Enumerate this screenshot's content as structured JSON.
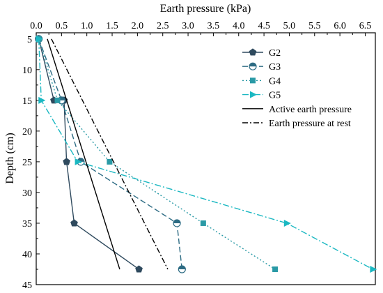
{
  "chart_data": {
    "type": "line",
    "title": "",
    "xlabel": "Earth pressure (kPa)",
    "ylabel": "Depth (cm)",
    "x_axis_position": "top",
    "y_axis_inverted": true,
    "xlim": [
      0,
      6.7
    ],
    "ylim": [
      4,
      45
    ],
    "xticks": [
      "0.0",
      "0.5",
      "1.0",
      "1.5",
      "2.0",
      "2.5",
      "3.0",
      "3.5",
      "4.0",
      "4.5",
      "5.0",
      "5.5",
      "6.0",
      "6.5"
    ],
    "yticks": [
      "5",
      "10",
      "15",
      "20",
      "25",
      "30",
      "35",
      "40",
      "45"
    ],
    "legend_position": "top-right",
    "grid": false,
    "series": [
      {
        "name": "G2",
        "color": "#2f4a5e",
        "marker": "pentagon",
        "dash": "solid",
        "points": [
          [
            0.05,
            5
          ],
          [
            0.35,
            15
          ],
          [
            0.55,
            15
          ],
          [
            0.6,
            25
          ],
          [
            0.75,
            35
          ],
          [
            2.03,
            42.5
          ]
        ]
      },
      {
        "name": "G3",
        "color": "#2e6c84",
        "marker": "half-circle",
        "dash": "dash",
        "points": [
          [
            0.05,
            5
          ],
          [
            0.5,
            15
          ],
          [
            0.88,
            25
          ],
          [
            2.78,
            35
          ],
          [
            2.88,
            42.5
          ]
        ]
      },
      {
        "name": "G4",
        "color": "#2a9aa6",
        "marker": "square",
        "dash": "dot",
        "points": [
          [
            0.05,
            5
          ],
          [
            0.42,
            15
          ],
          [
            1.45,
            25
          ],
          [
            3.3,
            35
          ],
          [
            4.72,
            42.5
          ]
        ]
      },
      {
        "name": "G5",
        "color": "#1bb8c2",
        "marker": "triangle-right",
        "dash": "dashdot",
        "points": [
          [
            0.05,
            5
          ],
          [
            0.1,
            15
          ],
          [
            0.82,
            25
          ],
          [
            4.95,
            35
          ],
          [
            6.65,
            42.5
          ]
        ]
      },
      {
        "name": "Active earth pressure",
        "color": "#000000",
        "marker": "none",
        "dash": "solid",
        "points": [
          [
            0.22,
            5
          ],
          [
            1.65,
            42.5
          ]
        ]
      },
      {
        "name": "Earth pressure at rest",
        "color": "#000000",
        "marker": "none",
        "dash": "dashdot-long",
        "points": [
          [
            0.3,
            5
          ],
          [
            2.6,
            42.5
          ]
        ]
      }
    ]
  }
}
